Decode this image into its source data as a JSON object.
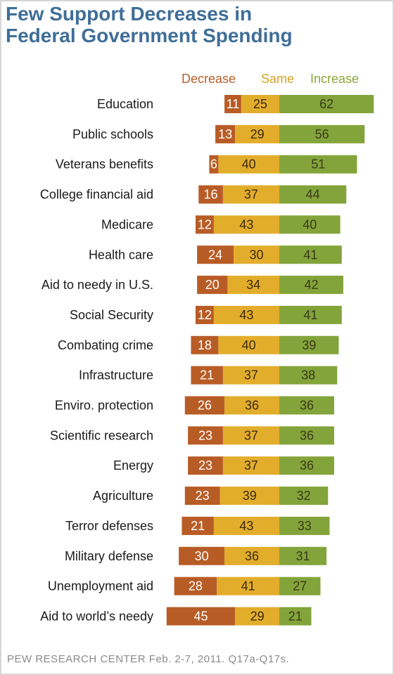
{
  "title_line1": "Few Support Decreases in",
  "title_line2": "Federal Government Spending",
  "source": "PEW RESEARCH CENTER Feb. 2-7, 2011. Q17a-Q17s.",
  "chart_data": {
    "type": "bar",
    "orientation": "horizontal",
    "stacked": true,
    "title": "Few Support Decreases in Federal Government Spending",
    "legend": [
      "Decrease",
      "Same",
      "Increase"
    ],
    "legend_position": "top",
    "categories": [
      "Education",
      "Public schools",
      "Veterans benefits",
      "College financial aid",
      "Medicare",
      "Health care",
      "Aid to needy in U.S.",
      "Social Security",
      "Combating crime",
      "Infrastructure",
      "Enviro. protection",
      "Scientific research",
      "Energy",
      "Agriculture",
      "Terror defenses",
      "Military defense",
      "Unemployment aid",
      "Aid to world’s needy"
    ],
    "series": [
      {
        "name": "Decrease",
        "color": "#b85c26",
        "values": [
          11,
          13,
          6,
          16,
          12,
          24,
          20,
          12,
          18,
          21,
          26,
          23,
          23,
          23,
          21,
          30,
          28,
          45
        ]
      },
      {
        "name": "Same",
        "color": "#e3ad2c",
        "values": [
          25,
          29,
          40,
          37,
          43,
          30,
          34,
          43,
          40,
          37,
          36,
          37,
          37,
          39,
          43,
          36,
          41,
          29
        ]
      },
      {
        "name": "Increase",
        "color": "#83a43a",
        "values": [
          62,
          56,
          51,
          44,
          40,
          41,
          42,
          41,
          39,
          38,
          36,
          36,
          36,
          32,
          33,
          31,
          27,
          21
        ]
      }
    ],
    "legend_colors": [
      "#b85c26",
      "#d7a325",
      "#8ba63b"
    ],
    "label_colors": [
      "#ffffff",
      "#3a2a10",
      "#3a3a1a"
    ]
  }
}
